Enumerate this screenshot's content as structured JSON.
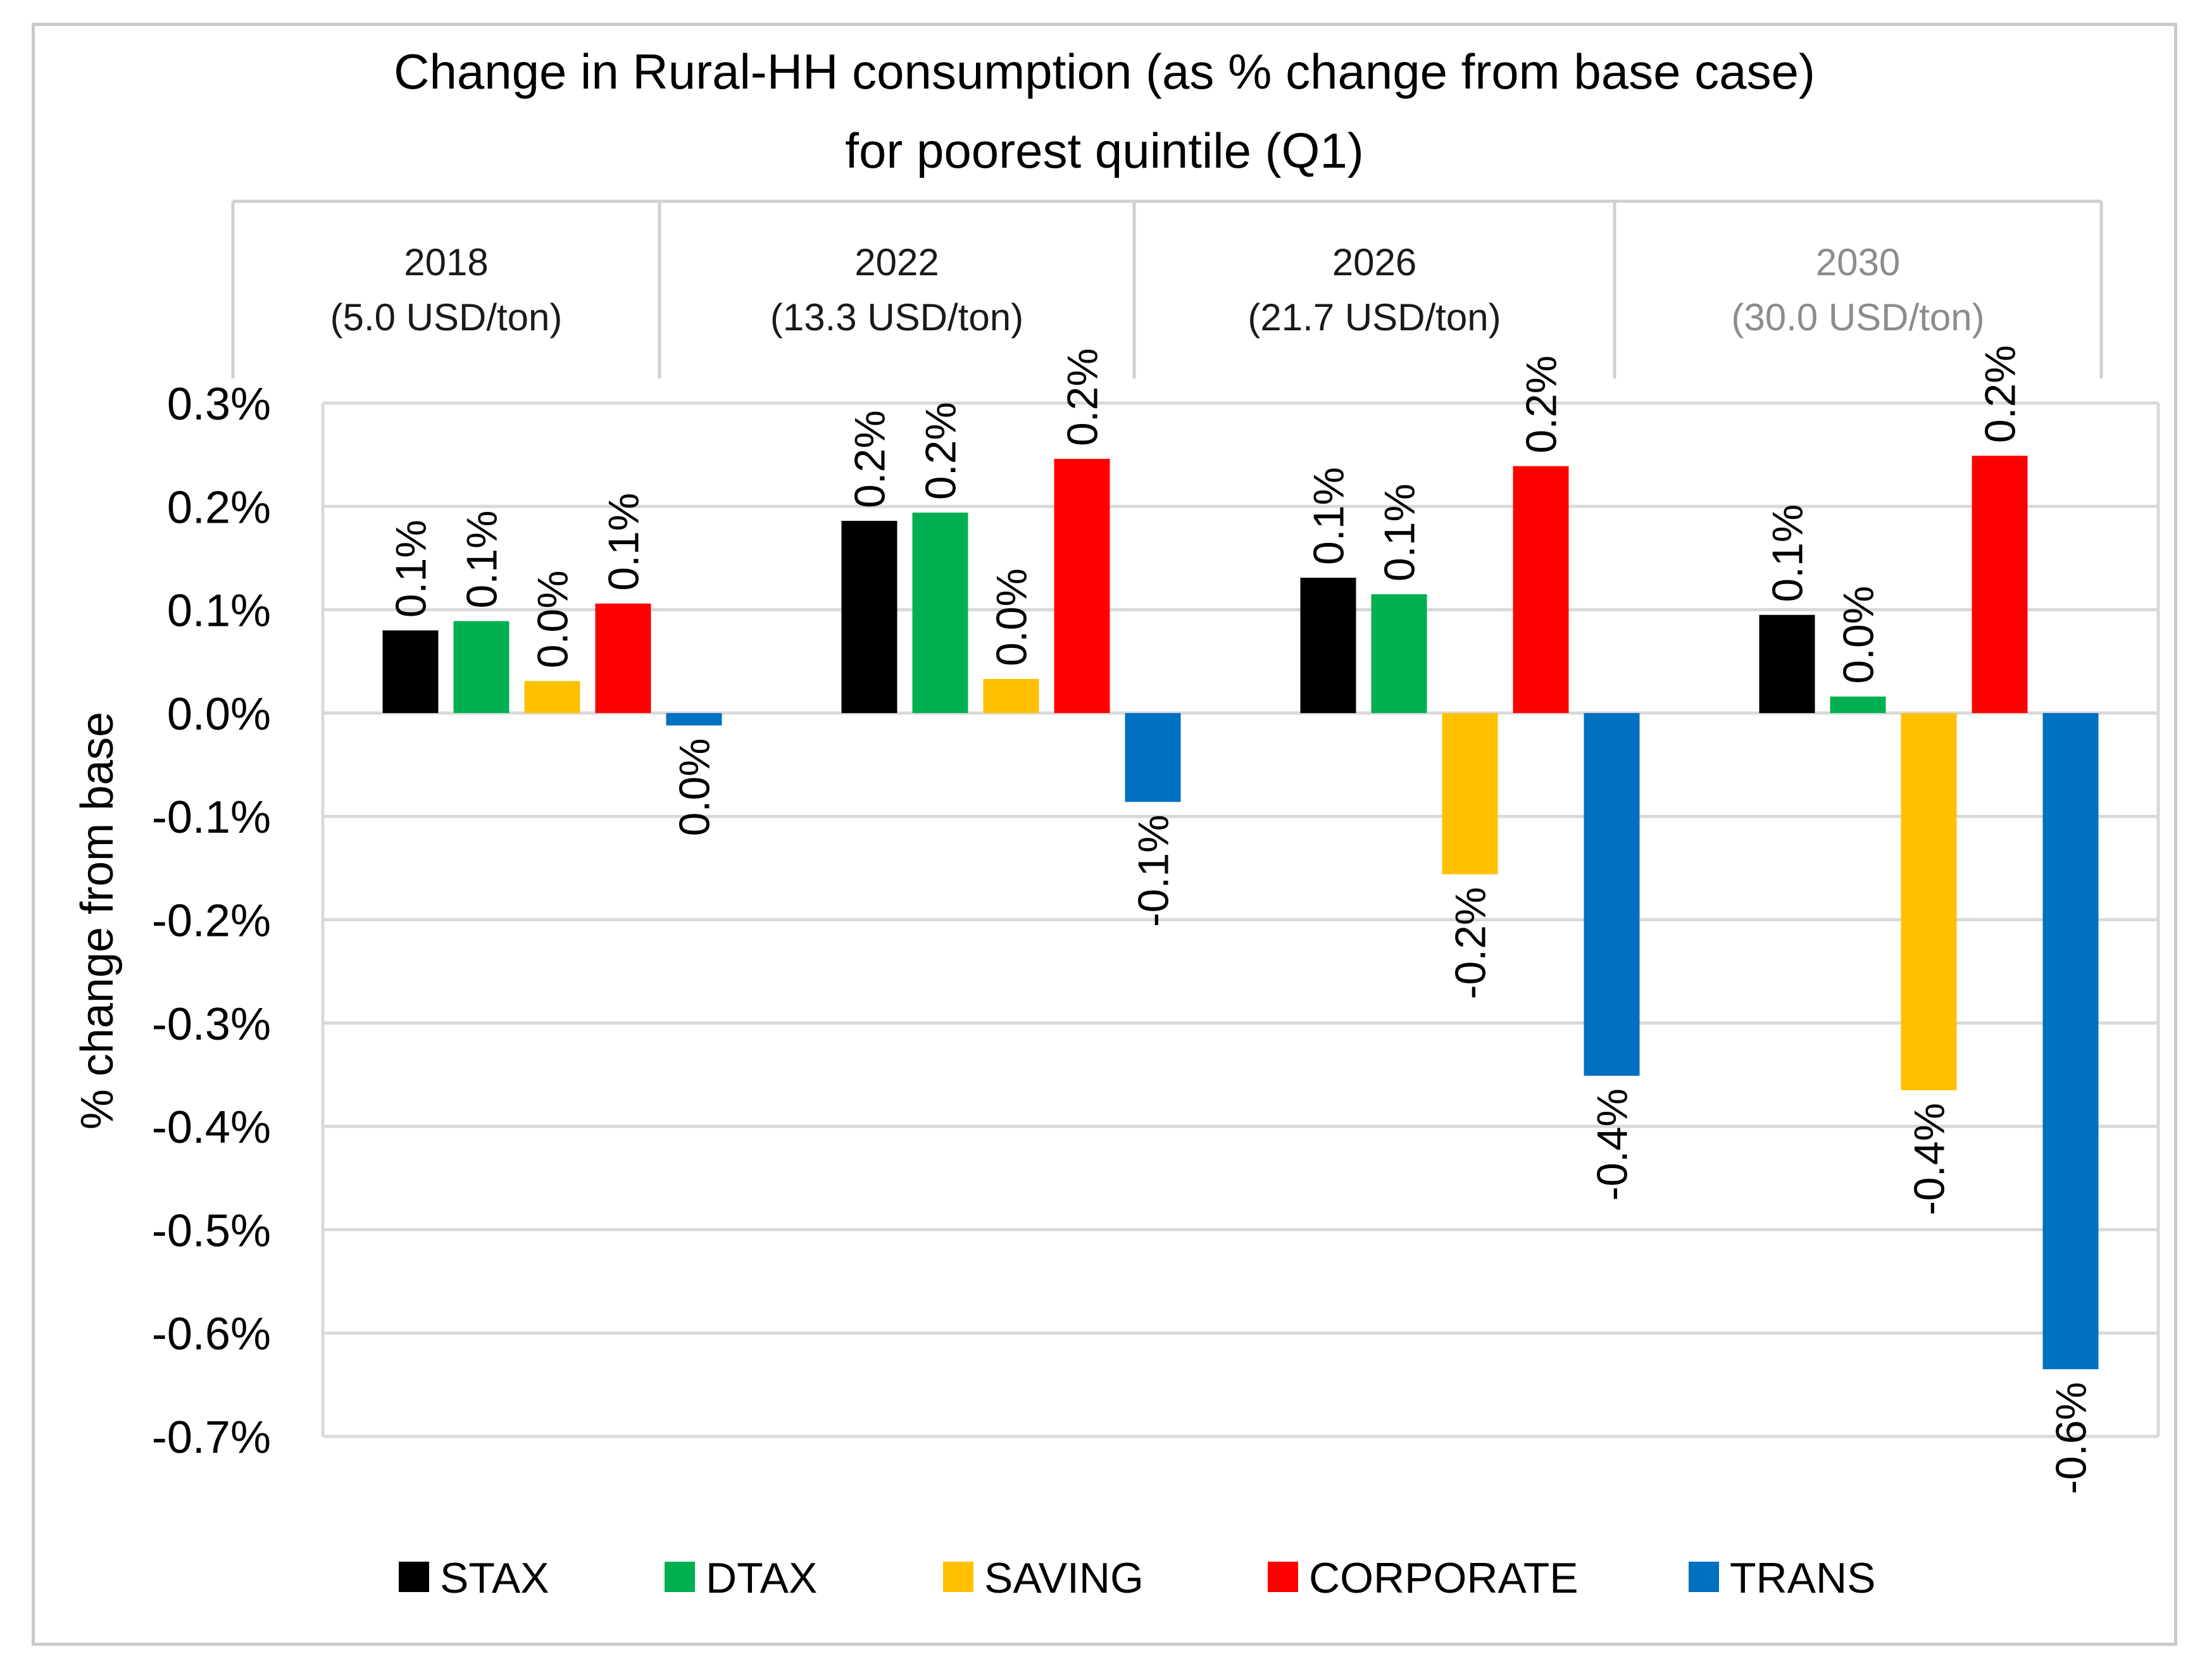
{
  "chart_data": {
    "type": "bar",
    "title": [
      "Change in Rural-HH consumption (as % change from base case)",
      "for poorest quintile (Q1)"
    ],
    "xlabel": "",
    "ylabel": "% change from base",
    "ylim": [
      -0.7,
      0.3
    ],
    "yticks": [
      0.3,
      0.2,
      0.1,
      0.0,
      -0.1,
      -0.2,
      -0.3,
      -0.4,
      -0.5,
      -0.6,
      -0.7
    ],
    "ytick_labels": [
      "0.3%",
      "0.2%",
      "0.1%",
      "0.0%",
      "-0.1%",
      "-0.2%",
      "-0.3%",
      "-0.4%",
      "-0.5%",
      "-0.6%",
      "-0.7%"
    ],
    "grid": true,
    "legend_position": "bottom",
    "categories": [
      {
        "year": "2018",
        "price": "(5.0 USD/ton)",
        "color": "#1a1a1a"
      },
      {
        "year": "2022",
        "price": "(13.3 USD/ton)",
        "color": "#1a1a1a"
      },
      {
        "year": "2026",
        "price": "(21.7 USD/ton)",
        "color": "#1a1a1a"
      },
      {
        "year": "2030",
        "price": "(30.0 USD/ton)",
        "color": "#8c8c8c"
      }
    ],
    "series": [
      {
        "name": "STAX",
        "color": "#000000",
        "values": [
          0.08,
          0.186,
          0.131,
          0.095
        ],
        "labels": [
          "0.1%",
          "0.2%",
          "0.1%",
          "0.1%"
        ]
      },
      {
        "name": "DTAX",
        "color": "#00b050",
        "values": [
          0.089,
          0.194,
          0.115,
          0.016
        ],
        "labels": [
          "0.1%",
          "0.2%",
          "0.1%",
          "0.0%"
        ]
      },
      {
        "name": "SAVING",
        "color": "#ffc000",
        "values": [
          0.031,
          0.033,
          -0.156,
          -0.365
        ],
        "labels": [
          "0.0%",
          "0.0%",
          "-0.2%",
          "-0.4%"
        ]
      },
      {
        "name": "CORPORATE",
        "color": "#ff0000",
        "values": [
          0.106,
          0.246,
          0.239,
          0.249
        ],
        "labels": [
          "0.1%",
          "0.2%",
          "0.2%",
          "0.2%"
        ]
      },
      {
        "name": "TRANS",
        "color": "#0070c0",
        "values": [
          -0.012,
          -0.086,
          -0.351,
          -0.635
        ],
        "labels": [
          "0.0%",
          "-0.1%",
          "-0.4%",
          "-0.6%"
        ]
      }
    ]
  }
}
